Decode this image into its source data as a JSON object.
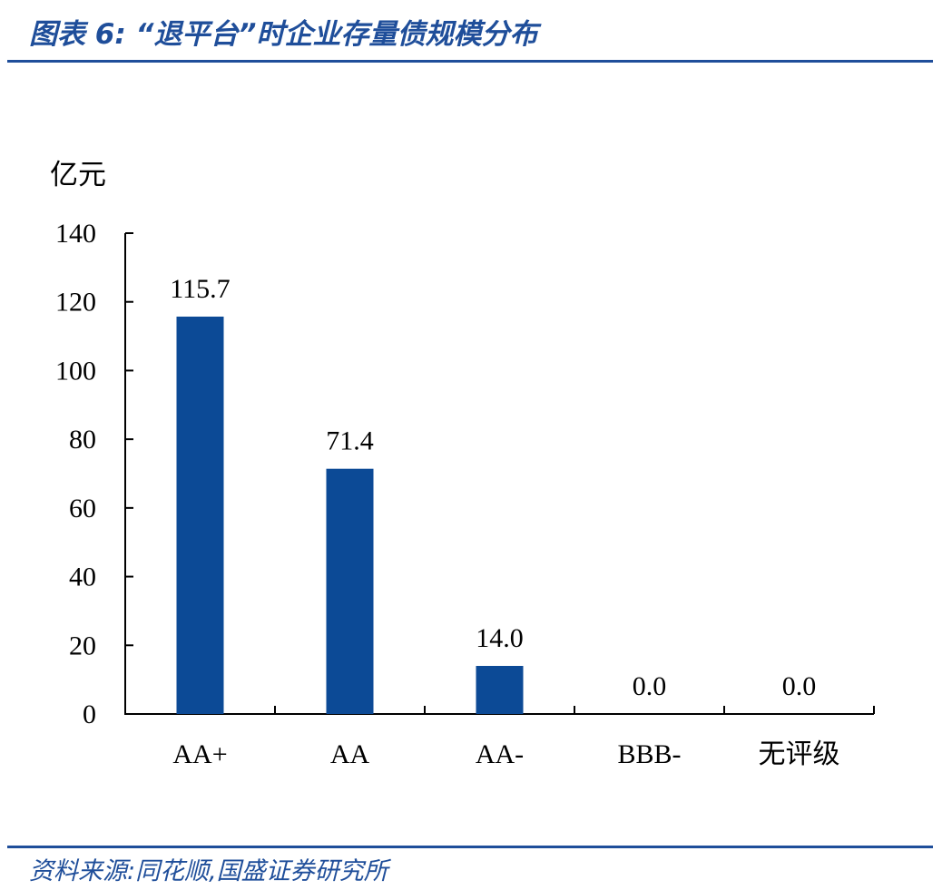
{
  "figure": {
    "title": "图表 6:  “退平台”时企业存量债规模分布",
    "source": "资料来源:同花顺,国盛证券研究所"
  },
  "colors": {
    "accent": "#1f4e9a",
    "bar": "#0c4a96"
  },
  "chart_data": {
    "type": "bar",
    "title": "“退平台”时企业存量债规模分布",
    "ylabel": "亿元",
    "xlabel": "",
    "categories": [
      "AA+",
      "AA",
      "AA-",
      "BBB-",
      "无评级"
    ],
    "values": [
      115.7,
      71.4,
      14.0,
      0.0,
      0.0
    ],
    "data_labels": [
      "115.7",
      "71.4",
      "14.0",
      "0.0",
      "0.0"
    ],
    "ylim": [
      0,
      140
    ],
    "yticks": [
      0,
      20,
      40,
      60,
      80,
      100,
      120,
      140
    ],
    "grid": false,
    "legend": "none"
  }
}
